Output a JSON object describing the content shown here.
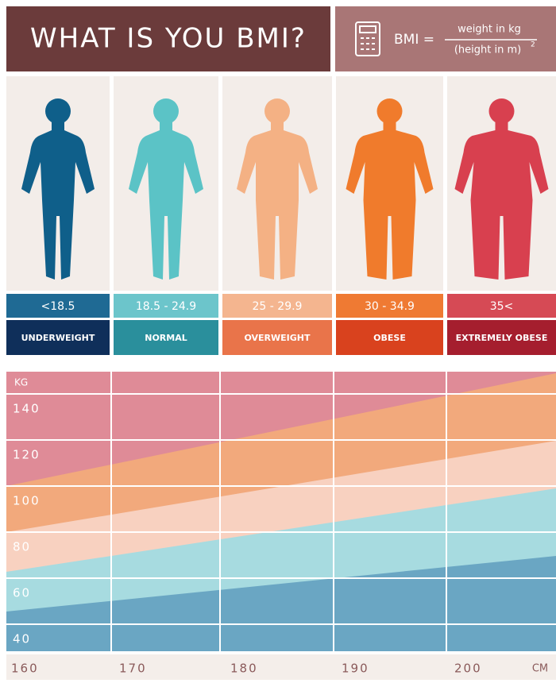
{
  "header": {
    "title": "WHAT IS YOU BMI?",
    "formula": {
      "lhs": "BMI =",
      "numerator": "weight in kg",
      "denominator": "(height in m)",
      "exponent": "2"
    }
  },
  "categories": [
    {
      "range": "<18.5",
      "label": "UNDERWEIGHT"
    },
    {
      "range": "18.5 - 24.9",
      "label": "NORMAL"
    },
    {
      "range": "25 - 29.9",
      "label": "OVERWEIGHT"
    },
    {
      "range": "30 - 34.9",
      "label": "OBESE"
    },
    {
      "range": "35<",
      "label": "EXTREMELY OBESE"
    }
  ],
  "chart": {
    "y_unit": "KG",
    "y_labels": [
      140,
      120,
      100,
      80,
      60,
      40
    ],
    "x_labels": [
      160,
      170,
      180,
      190,
      200
    ],
    "x_unit": "CM"
  }
}
